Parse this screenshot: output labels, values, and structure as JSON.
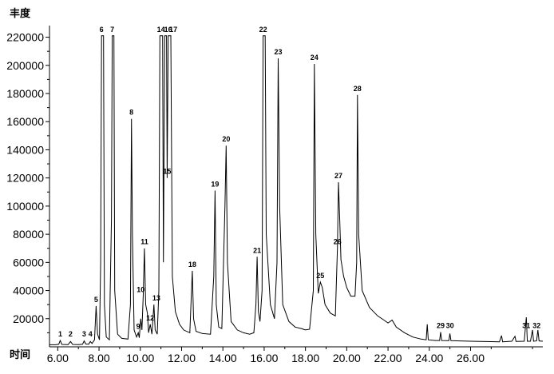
{
  "chart_data": {
    "type": "line",
    "ylabel": "丰度",
    "xlabel": "时间",
    "xlim": [
      5.6,
      29.5
    ],
    "ylim": [
      0,
      226000
    ],
    "x_ticks": [
      "6.00",
      "8.00",
      "10.00",
      "12.00",
      "14.00",
      "16.00",
      "18.00",
      "20.00",
      "22.00",
      "24.00",
      "26.00"
    ],
    "y_ticks": [
      "20000",
      "40000",
      "60000",
      "80000",
      "100000",
      "120000",
      "140000",
      "160000",
      "180000",
      "200000",
      "220000"
    ],
    "series": [
      {
        "line_color": "#000000",
        "points": [
          [
            5.6,
            1500
          ],
          [
            5.9,
            1500
          ],
          [
            6.05,
            1800
          ],
          [
            6.12,
            4500
          ],
          [
            6.2,
            1700
          ],
          [
            6.5,
            1600
          ],
          [
            6.62,
            3800
          ],
          [
            6.72,
            1700
          ],
          [
            7.0,
            1600
          ],
          [
            7.2,
            1800
          ],
          [
            7.28,
            4200
          ],
          [
            7.36,
            2000
          ],
          [
            7.5,
            1900
          ],
          [
            7.58,
            3800
          ],
          [
            7.66,
            2400
          ],
          [
            7.78,
            5000
          ],
          [
            7.86,
            29000
          ],
          [
            7.93,
            9000
          ],
          [
            8.02,
            5000
          ],
          [
            8.08,
            60000
          ],
          [
            8.12,
            221000
          ],
          [
            8.22,
            221000
          ],
          [
            8.26,
            30000
          ],
          [
            8.35,
            7000
          ],
          [
            8.5,
            5000
          ],
          [
            8.6,
            90000
          ],
          [
            8.64,
            221000
          ],
          [
            8.72,
            221000
          ],
          [
            8.76,
            40000
          ],
          [
            8.9,
            9000
          ],
          [
            9.1,
            6000
          ],
          [
            9.4,
            5500
          ],
          [
            9.52,
            30000
          ],
          [
            9.57,
            162000
          ],
          [
            9.62,
            80000
          ],
          [
            9.7,
            12000
          ],
          [
            9.82,
            7000
          ],
          [
            9.9,
            10000
          ],
          [
            9.95,
            6500
          ],
          [
            10.02,
            20000
          ],
          [
            10.08,
            12000
          ],
          [
            10.14,
            36000
          ],
          [
            10.2,
            70000
          ],
          [
            10.26,
            30000
          ],
          [
            10.34,
            24000
          ],
          [
            10.4,
            10000
          ],
          [
            10.48,
            16000
          ],
          [
            10.56,
            9000
          ],
          [
            10.66,
            30000
          ],
          [
            10.72,
            12000
          ],
          [
            10.82,
            9000
          ],
          [
            10.9,
            40000
          ],
          [
            10.95,
            221000
          ],
          [
            11.08,
            221000
          ],
          [
            11.12,
            60000
          ],
          [
            11.18,
            221000
          ],
          [
            11.27,
            221000
          ],
          [
            11.3,
            120000
          ],
          [
            11.35,
            221000
          ],
          [
            11.48,
            221000
          ],
          [
            11.55,
            50000
          ],
          [
            11.7,
            25000
          ],
          [
            11.9,
            16000
          ],
          [
            12.1,
            12000
          ],
          [
            12.4,
            10000
          ],
          [
            12.52,
            54000
          ],
          [
            12.58,
            20000
          ],
          [
            12.7,
            11000
          ],
          [
            13.0,
            9500
          ],
          [
            13.4,
            9000
          ],
          [
            13.56,
            50000
          ],
          [
            13.62,
            111000
          ],
          [
            13.68,
            30000
          ],
          [
            13.8,
            14000
          ],
          [
            13.95,
            13000
          ],
          [
            14.1,
            100000
          ],
          [
            14.16,
            143000
          ],
          [
            14.22,
            60000
          ],
          [
            14.4,
            18000
          ],
          [
            14.7,
            12000
          ],
          [
            15.0,
            10000
          ],
          [
            15.3,
            9000
          ],
          [
            15.5,
            10000
          ],
          [
            15.6,
            30000
          ],
          [
            15.66,
            64000
          ],
          [
            15.72,
            25000
          ],
          [
            15.8,
            18000
          ],
          [
            15.9,
            40000
          ],
          [
            15.95,
            221000
          ],
          [
            16.05,
            221000
          ],
          [
            16.1,
            80000
          ],
          [
            16.3,
            30000
          ],
          [
            16.5,
            20000
          ],
          [
            16.62,
            60000
          ],
          [
            16.68,
            205000
          ],
          [
            16.75,
            100000
          ],
          [
            16.9,
            30000
          ],
          [
            17.2,
            18000
          ],
          [
            17.5,
            14000
          ],
          [
            17.8,
            13000
          ],
          [
            18.0,
            12000
          ],
          [
            18.2,
            12500
          ],
          [
            18.38,
            40000
          ],
          [
            18.43,
            201000
          ],
          [
            18.5,
            80000
          ],
          [
            18.62,
            38000
          ],
          [
            18.72,
            46000
          ],
          [
            18.82,
            42000
          ],
          [
            18.95,
            30000
          ],
          [
            19.2,
            24000
          ],
          [
            19.45,
            22000
          ],
          [
            19.55,
            70000
          ],
          [
            19.6,
            117000
          ],
          [
            19.66,
            90000
          ],
          [
            19.72,
            62000
          ],
          [
            19.85,
            50000
          ],
          [
            20.0,
            42000
          ],
          [
            20.2,
            36000
          ],
          [
            20.4,
            36000
          ],
          [
            20.48,
            60000
          ],
          [
            20.52,
            179000
          ],
          [
            20.58,
            80000
          ],
          [
            20.75,
            40000
          ],
          [
            21.1,
            28000
          ],
          [
            21.5,
            22000
          ],
          [
            21.8,
            19000
          ],
          [
            22.0,
            17000
          ],
          [
            22.2,
            19000
          ],
          [
            22.4,
            14000
          ],
          [
            22.8,
            10000
          ],
          [
            23.2,
            7000
          ],
          [
            23.6,
            5500
          ],
          [
            23.85,
            5000
          ],
          [
            23.9,
            16000
          ],
          [
            23.95,
            5000
          ],
          [
            24.3,
            4500
          ],
          [
            24.5,
            4500
          ],
          [
            24.55,
            10500
          ],
          [
            24.6,
            4500
          ],
          [
            24.95,
            4400
          ],
          [
            25.0,
            9500
          ],
          [
            25.05,
            4400
          ],
          [
            25.5,
            4200
          ],
          [
            26.0,
            4000
          ],
          [
            26.5,
            3800
          ],
          [
            27.0,
            3700
          ],
          [
            27.4,
            3600
          ],
          [
            27.5,
            8000
          ],
          [
            27.55,
            3600
          ],
          [
            28.0,
            4000
          ],
          [
            28.15,
            7500
          ],
          [
            28.2,
            3800
          ],
          [
            28.6,
            4000
          ],
          [
            28.7,
            21000
          ],
          [
            28.75,
            4000
          ],
          [
            28.9,
            4000
          ],
          [
            29.0,
            12000
          ],
          [
            29.05,
            4000
          ],
          [
            29.2,
            4200
          ],
          [
            29.26,
            12000
          ],
          [
            29.32,
            4200
          ],
          [
            29.5,
            4000
          ]
        ]
      }
    ],
    "peak_labels": [
      {
        "text": "1",
        "x": 6.12,
        "y": 4500
      },
      {
        "text": "2",
        "x": 6.62,
        "y": 4500
      },
      {
        "text": "3",
        "x": 7.28,
        "y": 4500
      },
      {
        "text": "4",
        "x": 7.58,
        "y": 4500
      },
      {
        "text": "5",
        "x": 7.86,
        "y": 29000
      },
      {
        "text": "6",
        "x": 8.12,
        "y": 221000
      },
      {
        "text": "7",
        "x": 8.64,
        "y": 221000
      },
      {
        "text": "8",
        "x": 9.57,
        "y": 162000
      },
      {
        "text": "9",
        "x": 9.9,
        "y": 10000
      },
      {
        "text": "10",
        "x": 10.02,
        "y": 36000
      },
      {
        "text": "11",
        "x": 10.2,
        "y": 70000
      },
      {
        "text": "12",
        "x": 10.48,
        "y": 16000
      },
      {
        "text": "13",
        "x": 10.78,
        "y": 30000
      },
      {
        "text": "14",
        "x": 11.0,
        "y": 221000
      },
      {
        "text": "15",
        "x": 11.3,
        "y": 120000
      },
      {
        "text": "16",
        "x": 11.35,
        "y": 221000
      },
      {
        "text": "17",
        "x": 11.6,
        "y": 221000
      },
      {
        "text": "18",
        "x": 12.52,
        "y": 54000
      },
      {
        "text": "19",
        "x": 13.62,
        "y": 111000
      },
      {
        "text": "20",
        "x": 14.16,
        "y": 143000
      },
      {
        "text": "21",
        "x": 15.66,
        "y": 64000
      },
      {
        "text": "22",
        "x": 15.95,
        "y": 221000
      },
      {
        "text": "23",
        "x": 16.68,
        "y": 205000
      },
      {
        "text": "24",
        "x": 18.43,
        "y": 201000
      },
      {
        "text": "25",
        "x": 18.72,
        "y": 46000
      },
      {
        "text": "26",
        "x": 19.55,
        "y": 70000
      },
      {
        "text": "27",
        "x": 19.6,
        "y": 117000
      },
      {
        "text": "28",
        "x": 20.52,
        "y": 179000
      },
      {
        "text": "29",
        "x": 24.55,
        "y": 10500
      },
      {
        "text": "30",
        "x": 25.0,
        "y": 10500
      },
      {
        "text": "31",
        "x": 28.7,
        "y": 10500
      },
      {
        "text": "32",
        "x": 29.2,
        "y": 10500
      }
    ],
    "grid": false,
    "legend": "none"
  }
}
